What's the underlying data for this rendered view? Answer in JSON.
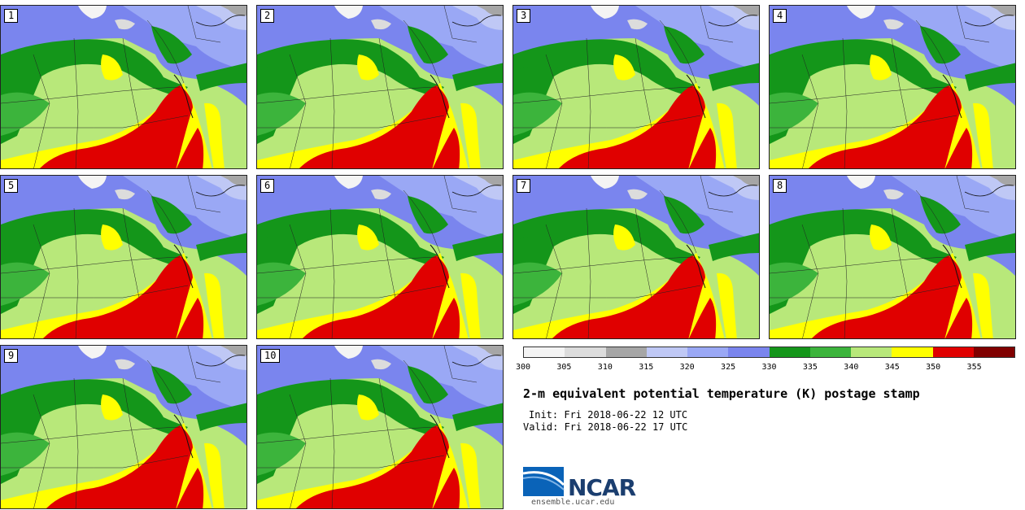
{
  "panels": [
    {
      "label": "1"
    },
    {
      "label": "2"
    },
    {
      "label": "3"
    },
    {
      "label": "4"
    },
    {
      "label": "5"
    },
    {
      "label": "6"
    },
    {
      "label": "7"
    },
    {
      "label": "8"
    },
    {
      "label": "9"
    },
    {
      "label": "10"
    }
  ],
  "colorbar": {
    "colors": [
      "#f4f4f4",
      "#dcdcdc",
      "#a6a6a6",
      "#bfc8f5",
      "#9aa8f5",
      "#7a85ee",
      "#14961a",
      "#3cb43c",
      "#b8e87a",
      "#ffff00",
      "#e00000",
      "#800000"
    ],
    "ticks": [
      "300",
      "305",
      "310",
      "315",
      "320",
      "325",
      "330",
      "335",
      "340",
      "345",
      "350",
      "355"
    ]
  },
  "title": "2-m equivalent potential temperature (K) postage stamp",
  "init": "Init: Fri 2018-06-22 12 UTC",
  "valid": "Valid: Fri 2018-06-22 17 UTC",
  "logo": {
    "text": "NCAR",
    "icon": "ncar-logo-icon",
    "brand_color": "#1b3e6f"
  },
  "url": "ensemble.ucar.edu"
}
